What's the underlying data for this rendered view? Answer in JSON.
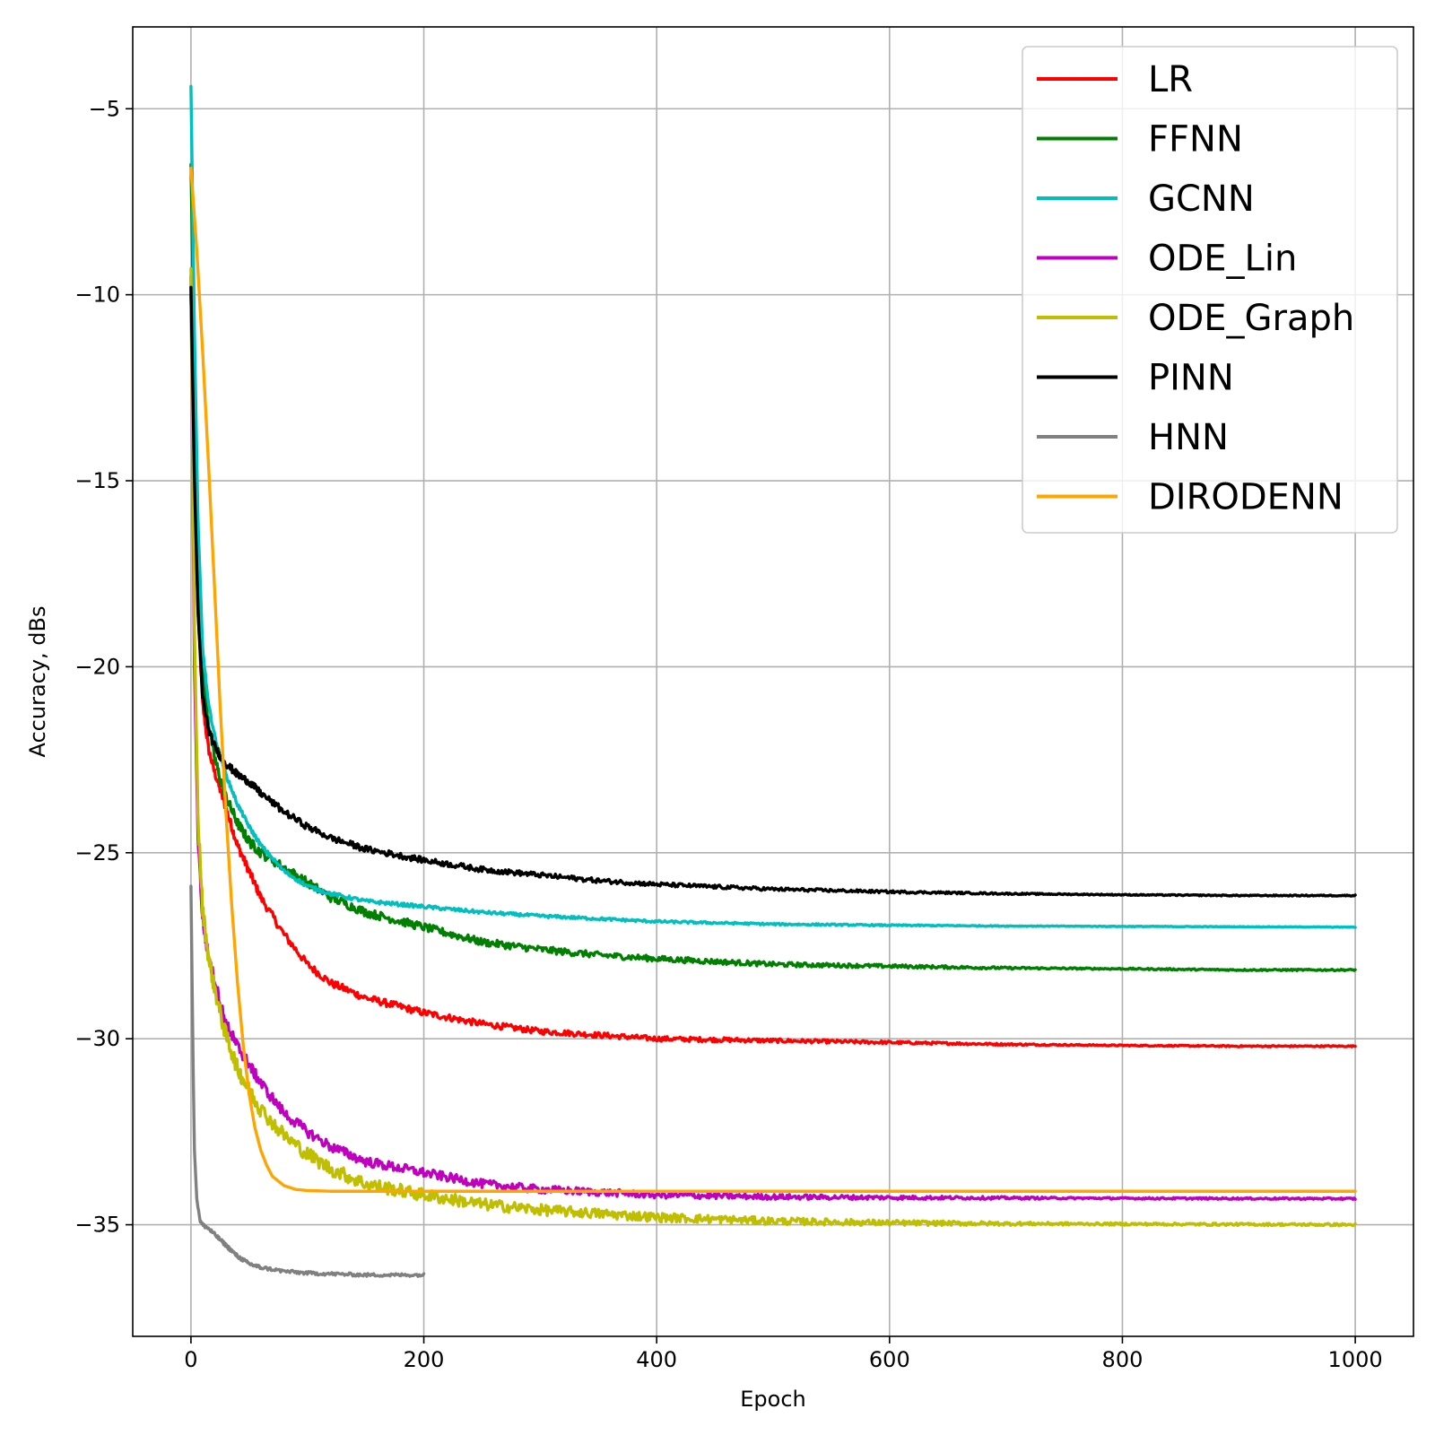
{
  "chart_data": {
    "type": "line",
    "title": "",
    "xlabel": "Epoch",
    "ylabel": "Accuracy, dBs",
    "xlim": [
      -50,
      1050
    ],
    "ylim": [
      -38.0,
      -2.8
    ],
    "xticks": [
      0,
      200,
      400,
      600,
      800,
      1000
    ],
    "xtick_labels": [
      "0",
      "200",
      "400",
      "600",
      "800",
      "1000"
    ],
    "yticks": [
      -35,
      -30,
      -25,
      -20,
      -15,
      -10,
      -5
    ],
    "ytick_labels": [
      "−35",
      "−30",
      "−25",
      "−20",
      "−15",
      "−10",
      "−5"
    ],
    "grid": true,
    "legend_position": "top-right",
    "series": [
      {
        "name": "LR",
        "color": "#ff0000",
        "noise": 0.12,
        "x": [
          0,
          3,
          6,
          10,
          15,
          20,
          25,
          30,
          40,
          50,
          60,
          80,
          100,
          120,
          150,
          200,
          250,
          300,
          350,
          400,
          500,
          600,
          700,
          800,
          900,
          1000
        ],
        "y": [
          -10,
          -15,
          -18.5,
          -21,
          -22.2,
          -22.8,
          -23.3,
          -23.8,
          -24.8,
          -25.5,
          -26.2,
          -27.2,
          -28.0,
          -28.5,
          -28.9,
          -29.3,
          -29.6,
          -29.8,
          -29.9,
          -30.0,
          -30.05,
          -30.1,
          -30.15,
          -30.18,
          -30.2,
          -30.2
        ]
      },
      {
        "name": "FFNN",
        "color": "#008000",
        "noise": 0.14,
        "x": [
          0,
          3,
          6,
          10,
          15,
          20,
          25,
          30,
          40,
          50,
          60,
          80,
          100,
          120,
          150,
          200,
          250,
          300,
          350,
          400,
          500,
          600,
          700,
          800,
          900,
          1000
        ],
        "y": [
          -6.5,
          -12,
          -17,
          -20,
          -21.5,
          -22.4,
          -23,
          -23.5,
          -24.2,
          -24.7,
          -25.0,
          -25.4,
          -25.8,
          -26.2,
          -26.6,
          -27.0,
          -27.4,
          -27.6,
          -27.75,
          -27.85,
          -28.0,
          -28.05,
          -28.1,
          -28.12,
          -28.15,
          -28.15
        ]
      },
      {
        "name": "GCNN",
        "color": "#00bfbf",
        "noise": 0.06,
        "x": [
          0,
          3,
          6,
          10,
          15,
          20,
          25,
          30,
          40,
          50,
          60,
          80,
          100,
          120,
          150,
          200,
          250,
          300,
          400,
          500,
          600,
          700,
          800,
          1000
        ],
        "y": [
          -4.4,
          -11,
          -16,
          -19.5,
          -21,
          -21.8,
          -22.4,
          -22.9,
          -23.7,
          -24.3,
          -24.8,
          -25.5,
          -25.9,
          -26.1,
          -26.3,
          -26.45,
          -26.6,
          -26.7,
          -26.85,
          -26.92,
          -26.95,
          -26.97,
          -26.98,
          -27.0
        ]
      },
      {
        "name": "ODE_Lin",
        "color": "#bf00bf",
        "noise": 0.16,
        "x": [
          0,
          3,
          6,
          10,
          15,
          20,
          25,
          30,
          40,
          50,
          60,
          80,
          100,
          120,
          150,
          200,
          250,
          300,
          400,
          500,
          600,
          700,
          800,
          1000
        ],
        "y": [
          -9.5,
          -20,
          -24.5,
          -26.8,
          -27.8,
          -28.4,
          -29.0,
          -29.6,
          -30.2,
          -30.7,
          -31.2,
          -32.0,
          -32.5,
          -32.9,
          -33.3,
          -33.6,
          -33.9,
          -34.05,
          -34.2,
          -34.25,
          -34.27,
          -34.28,
          -34.29,
          -34.3
        ]
      },
      {
        "name": "ODE_Graph",
        "color": "#bfbf00",
        "noise": 0.22,
        "x": [
          0,
          3,
          6,
          10,
          15,
          20,
          25,
          30,
          40,
          50,
          60,
          80,
          100,
          120,
          150,
          200,
          250,
          300,
          400,
          500,
          600,
          700,
          800,
          1000
        ],
        "y": [
          -9.3,
          -19,
          -24,
          -26.5,
          -27.8,
          -28.6,
          -29.3,
          -29.9,
          -30.8,
          -31.4,
          -31.9,
          -32.6,
          -33.1,
          -33.5,
          -33.9,
          -34.2,
          -34.45,
          -34.6,
          -34.8,
          -34.9,
          -34.95,
          -34.97,
          -34.98,
          -35.0
        ]
      },
      {
        "name": "PINN",
        "color": "#000000",
        "noise": 0.1,
        "x": [
          0,
          3,
          6,
          10,
          15,
          20,
          25,
          30,
          40,
          50,
          60,
          80,
          100,
          120,
          150,
          200,
          250,
          300,
          350,
          400,
          500,
          600,
          700,
          800,
          900,
          1000
        ],
        "y": [
          -9.8,
          -15,
          -18.5,
          -20.8,
          -21.7,
          -22.1,
          -22.4,
          -22.6,
          -22.9,
          -23.1,
          -23.4,
          -23.9,
          -24.3,
          -24.6,
          -24.9,
          -25.2,
          -25.45,
          -25.6,
          -25.75,
          -25.85,
          -25.98,
          -26.05,
          -26.1,
          -26.13,
          -26.15,
          -26.15
        ]
      },
      {
        "name": "HNN",
        "color": "#808080",
        "noise": 0.05,
        "x": [
          0,
          1,
          2,
          3,
          5,
          8,
          10,
          15,
          20,
          30,
          40,
          50,
          60,
          80,
          100,
          120,
          150,
          180,
          200
        ],
        "y": [
          -25.9,
          -28.5,
          -31,
          -33,
          -34.3,
          -34.9,
          -35.0,
          -35.1,
          -35.25,
          -35.55,
          -35.85,
          -36.05,
          -36.15,
          -36.25,
          -36.3,
          -36.32,
          -36.35,
          -36.35,
          -36.35
        ]
      },
      {
        "name": "DIRODENN",
        "color": "#ffa500",
        "noise": 0,
        "x": [
          0,
          5,
          10,
          15,
          20,
          25,
          30,
          35,
          40,
          45,
          50,
          55,
          60,
          65,
          70,
          80,
          90,
          100,
          120,
          150,
          200,
          300,
          500,
          800,
          1000
        ],
        "y": [
          -6.6,
          -8.8,
          -11.5,
          -14.5,
          -17.7,
          -21,
          -23.9,
          -26.4,
          -28.5,
          -30.2,
          -31.5,
          -32.4,
          -33.0,
          -33.4,
          -33.7,
          -33.95,
          -34.05,
          -34.08,
          -34.1,
          -34.1,
          -34.1,
          -34.1,
          -34.1,
          -34.1,
          -34.1
        ]
      }
    ]
  }
}
